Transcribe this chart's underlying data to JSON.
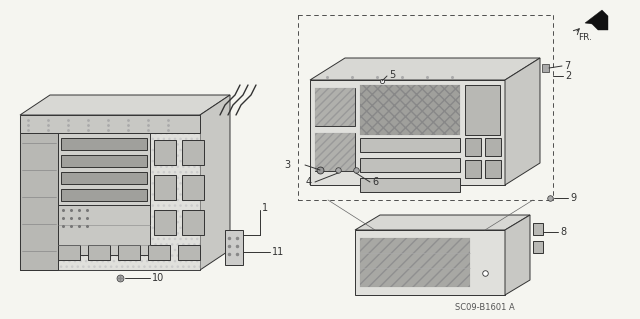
{
  "bg_color": "#f5f5f0",
  "fig_width": 6.4,
  "fig_height": 3.19,
  "diagram_code": "SC09-B1601 A",
  "fr_label": "FR.",
  "line_color": "#333333",
  "lw": 0.7,
  "face_light": "#e0e0dc",
  "face_mid": "#c8c8c4",
  "face_dark": "#b0b0ac",
  "face_top": "#d8d8d4",
  "face_vlight": "#ececea",
  "hatch_color": "#999999"
}
